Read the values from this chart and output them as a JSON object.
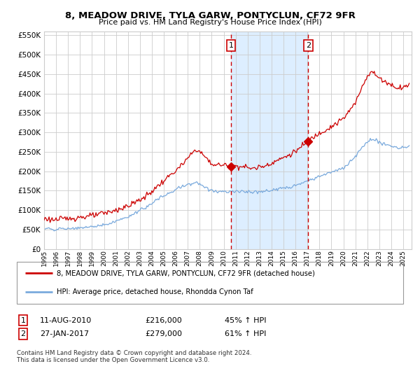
{
  "title": "8, MEADOW DRIVE, TYLA GARW, PONTYCLUN, CF72 9FR",
  "subtitle": "Price paid vs. HM Land Registry's House Price Index (HPI)",
  "legend_line1": "8, MEADOW DRIVE, TYLA GARW, PONTYCLUN, CF72 9FR (detached house)",
  "legend_line2": "HPI: Average price, detached house, Rhondda Cynon Taf",
  "annotation1_date": "11-AUG-2010",
  "annotation1_price": "£216,000",
  "annotation1_hpi": "45% ↑ HPI",
  "annotation2_date": "27-JAN-2017",
  "annotation2_price": "£279,000",
  "annotation2_hpi": "61% ↑ HPI",
  "footer": "Contains HM Land Registry data © Crown copyright and database right 2024.\nThis data is licensed under the Open Government Licence v3.0.",
  "sale1_date_num": 2010.607,
  "sale1_price": 216000,
  "sale2_date_num": 2017.074,
  "sale2_price": 279000,
  "red_color": "#cc0000",
  "blue_color": "#7aaadd",
  "shading_color": "#ddeeff",
  "background_color": "#ffffff",
  "grid_color": "#cccccc",
  "ylim": [
    0,
    560000
  ],
  "yticks": [
    0,
    50000,
    100000,
    150000,
    200000,
    250000,
    300000,
    350000,
    400000,
    450000,
    500000,
    550000
  ],
  "xlim_start": 1995.0,
  "xlim_end": 2025.7
}
